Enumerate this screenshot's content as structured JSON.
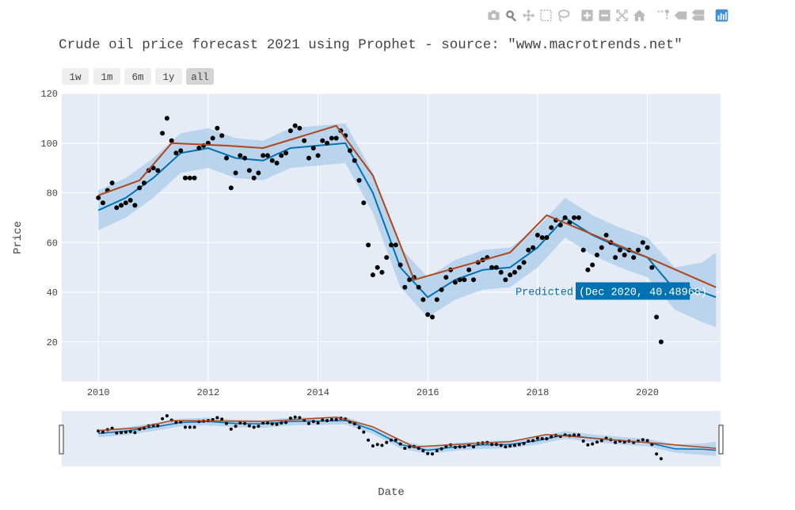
{
  "modebar": {
    "icons": [
      "camera-icon",
      "zoom-icon",
      "pan-icon",
      "box-select-icon",
      "lasso-select-icon",
      "zoom-in-icon",
      "zoom-out-icon",
      "autoscale-icon",
      "reset-axes-icon",
      "spike-lines-icon",
      "hover-closest-icon",
      "hover-compare-icon",
      "plotly-logo-icon"
    ],
    "icon_color": "#bbbbbb",
    "active_color": "#888888",
    "logo_color": "#3f8fd2"
  },
  "rangeselector": {
    "buttons": [
      "1w",
      "1m",
      "6m",
      "1y",
      "all"
    ],
    "active": "all"
  },
  "hover": {
    "label": "Predicted",
    "value": "(Dec 2020, 40.48968)",
    "date": "2020-12-01",
    "price": 40.48968
  },
  "colors": {
    "plot_bg": "#e5ecf6",
    "band": "#a9cce8",
    "predicted": "#0072b2",
    "trend": "#b0461a",
    "actual": "#000000"
  },
  "chart_data": {
    "type": "line",
    "title": "Crude oil price forecast 2021 using Prophet - source: \"www.macrotrends.net\"",
    "xlabel": "Date",
    "ylabel": "Price",
    "xlim": [
      "2009-05-01",
      "2021-05-01"
    ],
    "ylim": [
      4,
      120
    ],
    "xticks": [
      "2010",
      "2012",
      "2014",
      "2016",
      "2018",
      "2020"
    ],
    "yticks": [
      20,
      40,
      60,
      80,
      100,
      120
    ],
    "grid": true,
    "rangeslider": true,
    "series": [
      {
        "type": "scatter",
        "dates": [
          "2010-01",
          "2010-02",
          "2010-03",
          "2010-04",
          "2010-05",
          "2010-06",
          "2010-07",
          "2010-08",
          "2010-09",
          "2010-10",
          "2010-11",
          "2010-12",
          "2011-01",
          "2011-02",
          "2011-03",
          "2011-04",
          "2011-05",
          "2011-06",
          "2011-07",
          "2011-08",
          "2011-09",
          "2011-10",
          "2011-11",
          "2011-12",
          "2012-01",
          "2012-02",
          "2012-03",
          "2012-04",
          "2012-05",
          "2012-06",
          "2012-07",
          "2012-08",
          "2012-09",
          "2012-10",
          "2012-11",
          "2012-12",
          "2013-01",
          "2013-02",
          "2013-03",
          "2013-04",
          "2013-05",
          "2013-06",
          "2013-07",
          "2013-08",
          "2013-09",
          "2013-10",
          "2013-11",
          "2013-12",
          "2014-01",
          "2014-02",
          "2014-03",
          "2014-04",
          "2014-05",
          "2014-06",
          "2014-07",
          "2014-08",
          "2014-09",
          "2014-10",
          "2014-11",
          "2014-12",
          "2015-01",
          "2015-02",
          "2015-03",
          "2015-04",
          "2015-05",
          "2015-06",
          "2015-07",
          "2015-08",
          "2015-09",
          "2015-10",
          "2015-11",
          "2015-12",
          "2016-01",
          "2016-02",
          "2016-03",
          "2016-04",
          "2016-05",
          "2016-06",
          "2016-07",
          "2016-08",
          "2016-09",
          "2016-10",
          "2016-11",
          "2016-12",
          "2017-01",
          "2017-02",
          "2017-03",
          "2017-04",
          "2017-05",
          "2017-06",
          "2017-07",
          "2017-08",
          "2017-09",
          "2017-10",
          "2017-11",
          "2017-12",
          "2018-01",
          "2018-02",
          "2018-03",
          "2018-04",
          "2018-05",
          "2018-06",
          "2018-07",
          "2018-08",
          "2018-09",
          "2018-10",
          "2018-11",
          "2018-12",
          "2019-01",
          "2019-02",
          "2019-03",
          "2019-04",
          "2019-05",
          "2019-06",
          "2019-07",
          "2019-08",
          "2019-09",
          "2019-10",
          "2019-11",
          "2019-12",
          "2020-01",
          "2020-02",
          "2020-03",
          "2020-04"
        ],
        "values": [
          78,
          76,
          81,
          84,
          74,
          75,
          76,
          77,
          75,
          82,
          84,
          89,
          90,
          89,
          104,
          110,
          101,
          96,
          97,
          86,
          86,
          86,
          98,
          99,
          100,
          102,
          106,
          103,
          94,
          82,
          88,
          95,
          94,
          89,
          86,
          88,
          95,
          95,
          93,
          92,
          95,
          96,
          105,
          107,
          106,
          101,
          94,
          98,
          95,
          101,
          100,
          102,
          102,
          105,
          103,
          97,
          93,
          85,
          76,
          59,
          47,
          50,
          48,
          54,
          59,
          59,
          51,
          42,
          45,
          46,
          42,
          37,
          31,
          30,
          37,
          41,
          46,
          49,
          44,
          45,
          45,
          49,
          45,
          52,
          53,
          54,
          50,
          50,
          48,
          45,
          47,
          48,
          50,
          52,
          57,
          58,
          63,
          62,
          62,
          66,
          69,
          67,
          70,
          68,
          70,
          70,
          57,
          49,
          51,
          55,
          58,
          63,
          60,
          54,
          57,
          55,
          57,
          54,
          57,
          60,
          58,
          50,
          30,
          20
        ]
      },
      {
        "type": "line",
        "dates": [
          "2010-01",
          "2010-07",
          "2011-01",
          "2011-07",
          "2012-01",
          "2012-07",
          "2013-01",
          "2013-07",
          "2014-01",
          "2014-07",
          "2015-01",
          "2015-07",
          "2016-01",
          "2016-07",
          "2017-01",
          "2017-07",
          "2018-01",
          "2018-07",
          "2019-01",
          "2019-07",
          "2020-01",
          "2020-07",
          "2021-01",
          "2021-04"
        ],
        "values": [
          73,
          78,
          86,
          96,
          98,
          94,
          93,
          98,
          99,
          100,
          80,
          50,
          38,
          45,
          49,
          50,
          58,
          70,
          63,
          58,
          54,
          41,
          40,
          38
        ]
      },
      {
        "type": "area",
        "dates": [
          "2010-01",
          "2010-07",
          "2011-01",
          "2011-07",
          "2012-01",
          "2012-07",
          "2013-01",
          "2013-07",
          "2014-01",
          "2014-07",
          "2015-01",
          "2015-07",
          "2016-01",
          "2016-07",
          "2017-01",
          "2017-07",
          "2018-01",
          "2018-07",
          "2019-01",
          "2019-07",
          "2020-01",
          "2020-07",
          "2021-01",
          "2021-04"
        ],
        "lower": [
          65,
          70,
          78,
          88,
          90,
          86,
          85,
          90,
          91,
          92,
          72,
          42,
          30,
          37,
          41,
          42,
          50,
          62,
          55,
          50,
          46,
          33,
          28,
          26
        ],
        "upper": [
          81,
          86,
          94,
          104,
          106,
          102,
          101,
          106,
          107,
          108,
          88,
          58,
          46,
          53,
          57,
          58,
          66,
          78,
          71,
          66,
          62,
          50,
          52,
          56
        ]
      },
      {
        "type": "line",
        "dates": [
          "2010-01-01",
          "2010-10-01",
          "2011-05-01",
          "2012-05-01",
          "2013-01-01",
          "2014-05-01",
          "2015-01-01",
          "2015-10-01",
          "2017-07-01",
          "2018-03-01",
          "2020-01-01",
          "2021-04-01"
        ],
        "values": [
          79,
          85,
          100,
          99,
          98,
          107,
          87,
          45,
          56,
          71,
          54,
          42
        ]
      }
    ]
  }
}
